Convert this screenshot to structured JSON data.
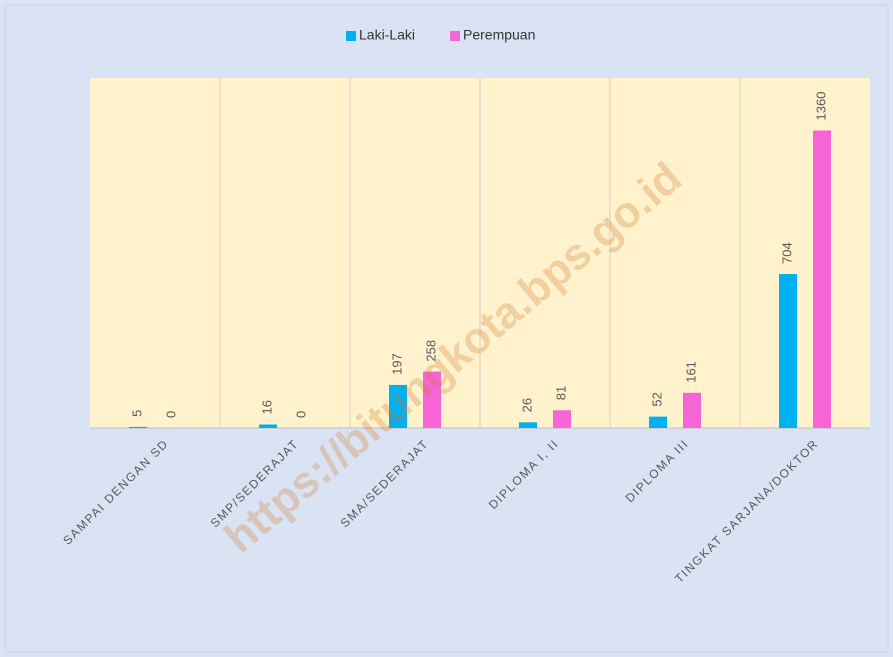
{
  "chart_data": {
    "type": "bar",
    "watermark": "https://bitungkota.bps.go.id",
    "categories": [
      "SAMPAI DENGAN SD",
      "SMP/SEDERAJAT",
      "SMA/SEDERAJAT",
      "DIPLOMA I, II",
      "DIPLOMA III",
      "TINGKAT SARJANA/DOKTOR"
    ],
    "series": [
      {
        "name": "Laki-Laki",
        "color": "#00b0f0",
        "values": [
          5,
          16,
          197,
          26,
          52,
          704
        ]
      },
      {
        "name": "Perempuan",
        "color": "#f565d6",
        "values": [
          0,
          0,
          258,
          81,
          161,
          1360
        ]
      }
    ],
    "ylim": [
      0,
      1600
    ],
    "grid": false,
    "legend": "top"
  }
}
